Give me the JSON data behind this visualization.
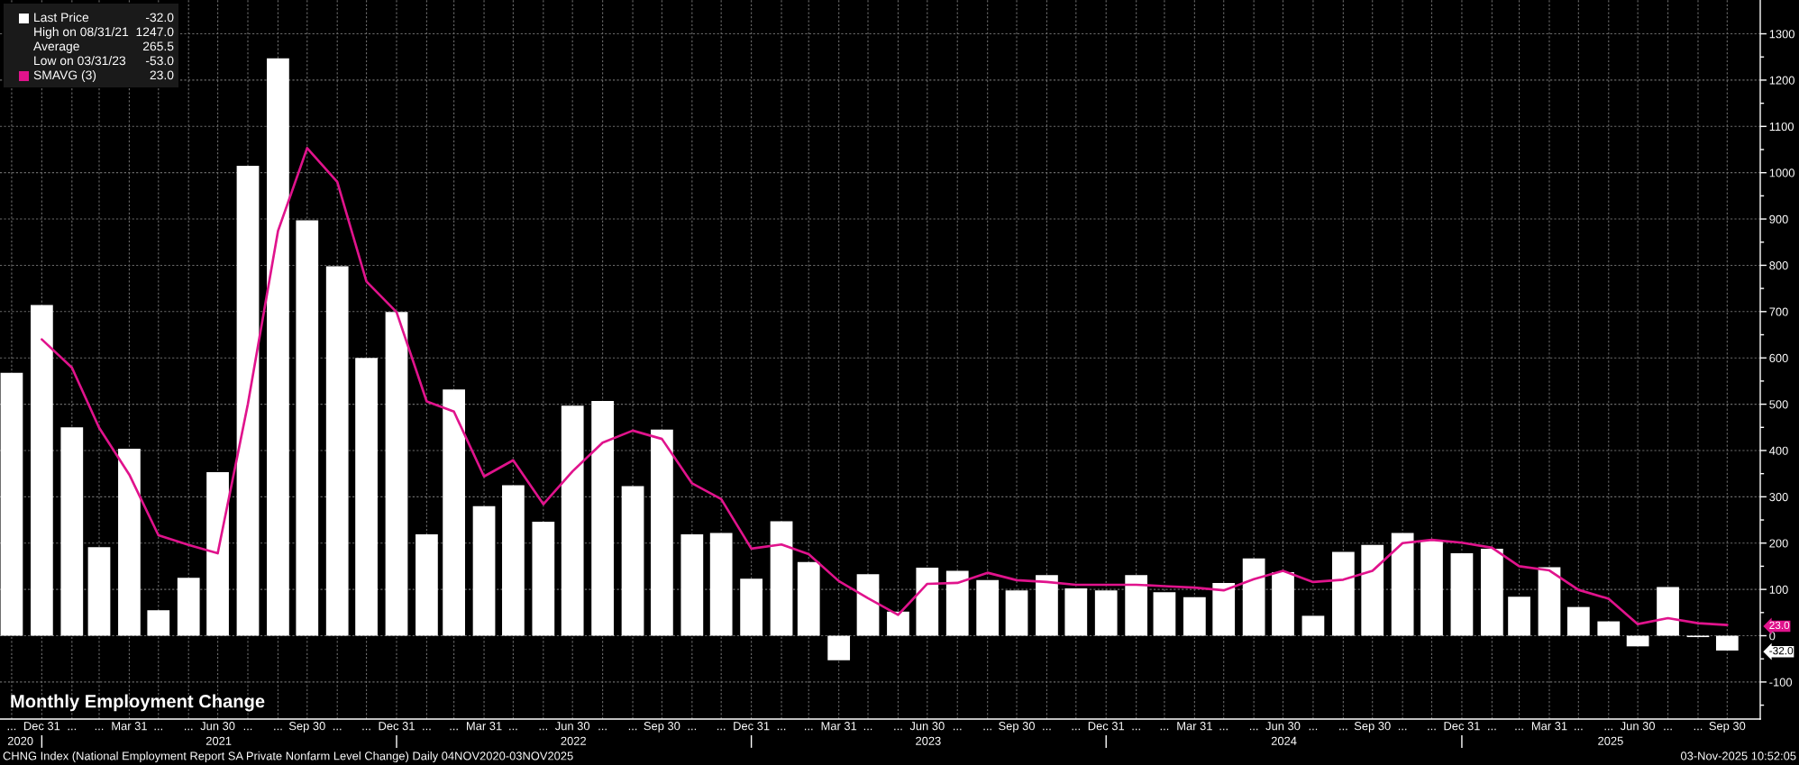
{
  "chart_data": {
    "type": "bar",
    "title": "Monthly Employment Change",
    "subtitle": "CHNG Index (National Employment Report SA Private Nonfarm Level Change) Daily 04NOV2020-03NOV2025",
    "x": [
      "2020-11-30",
      "2020-12-31",
      "2021-01-31",
      "2021-02-28",
      "2021-03-31",
      "2021-04-30",
      "2021-05-31",
      "2021-06-30",
      "2021-07-31",
      "2021-08-31",
      "2021-09-30",
      "2021-10-31",
      "2021-11-30",
      "2021-12-31",
      "2022-01-31",
      "2022-02-28",
      "2022-03-31",
      "2022-04-30",
      "2022-05-31",
      "2022-06-30",
      "2022-07-31",
      "2022-08-31",
      "2022-09-30",
      "2022-10-31",
      "2022-11-30",
      "2022-12-31",
      "2023-01-31",
      "2023-02-28",
      "2023-03-31",
      "2023-04-30",
      "2023-05-31",
      "2023-06-30",
      "2023-07-31",
      "2023-08-31",
      "2023-09-30",
      "2023-10-31",
      "2023-11-30",
      "2023-12-31",
      "2024-01-31",
      "2024-02-29",
      "2024-03-31",
      "2024-04-30",
      "2024-05-31",
      "2024-06-30",
      "2024-07-31",
      "2024-08-31",
      "2024-09-30",
      "2024-10-31",
      "2024-11-30",
      "2024-12-31",
      "2025-01-31",
      "2025-02-28",
      "2025-03-31",
      "2025-04-30",
      "2025-05-31",
      "2025-06-30",
      "2025-07-31",
      "2025-08-31",
      "2025-09-30"
    ],
    "series": [
      {
        "name": "Last Price",
        "color": "#ffffff",
        "values": [
          568,
          714,
          450,
          191,
          404,
          55,
          125,
          353,
          1015,
          1247,
          897,
          798,
          600,
          699,
          219,
          532,
          280,
          325,
          246,
          497,
          507,
          323,
          445,
          219,
          222,
          123,
          247,
          159,
          -53,
          133,
          52,
          147,
          140,
          120,
          98,
          131,
          102,
          98,
          131,
          94,
          83,
          114,
          167,
          137,
          43,
          181,
          196,
          222,
          206,
          178,
          188,
          84,
          148,
          62,
          31,
          -23,
          105,
          -3,
          -32
        ]
      },
      {
        "name": "SMAVG (3)",
        "type": "line",
        "color": "#e0138c",
        "values": [
          null,
          640,
          579,
          449,
          348,
          217,
          196,
          178,
          500,
          874,
          1053,
          980,
          765,
          699,
          506,
          484,
          344,
          379,
          284,
          355,
          417,
          443,
          425,
          329,
          295,
          188,
          197,
          176,
          118,
          81,
          45,
          112,
          114,
          136,
          120,
          116,
          110,
          110,
          110,
          107,
          104,
          98,
          122,
          140,
          116,
          121,
          140,
          200,
          207,
          201,
          190,
          150,
          141,
          99,
          80,
          25,
          38,
          27,
          23
        ]
      }
    ],
    "xlim": [
      "2020-11-18",
      "2025-11-03"
    ],
    "xticks": [
      {
        "value": "2020-11-30",
        "label": "..."
      },
      {
        "value": "2020-12-31",
        "label": "Dec 31"
      },
      {
        "value": "2021-01-31",
        "label": "..."
      },
      {
        "value": "2021-02-28",
        "label": "..."
      },
      {
        "value": "2021-03-31",
        "label": "Mar 31"
      },
      {
        "value": "2021-04-30",
        "label": "..."
      },
      {
        "value": "2021-05-31",
        "label": "..."
      },
      {
        "value": "2021-06-30",
        "label": "Jun 30"
      },
      {
        "value": "2021-07-31",
        "label": "..."
      },
      {
        "value": "2021-08-31",
        "label": "..."
      },
      {
        "value": "2021-09-30",
        "label": "Sep 30"
      },
      {
        "value": "2021-10-31",
        "label": "..."
      },
      {
        "value": "2021-11-30",
        "label": "..."
      },
      {
        "value": "2021-12-31",
        "label": "Dec 31"
      },
      {
        "value": "2022-01-31",
        "label": "..."
      },
      {
        "value": "2022-02-28",
        "label": "..."
      },
      {
        "value": "2022-03-31",
        "label": "Mar 31"
      },
      {
        "value": "2022-04-30",
        "label": "..."
      },
      {
        "value": "2022-05-31",
        "label": "..."
      },
      {
        "value": "2022-06-30",
        "label": "Jun 30"
      },
      {
        "value": "2022-07-31",
        "label": "..."
      },
      {
        "value": "2022-08-31",
        "label": "..."
      },
      {
        "value": "2022-09-30",
        "label": "Sep 30"
      },
      {
        "value": "2022-10-31",
        "label": "..."
      },
      {
        "value": "2022-11-30",
        "label": "..."
      },
      {
        "value": "2022-12-31",
        "label": "Dec 31"
      },
      {
        "value": "2023-01-31",
        "label": "..."
      },
      {
        "value": "2023-02-28",
        "label": "..."
      },
      {
        "value": "2023-03-31",
        "label": "Mar 31"
      },
      {
        "value": "2023-04-30",
        "label": "..."
      },
      {
        "value": "2023-05-31",
        "label": "..."
      },
      {
        "value": "2023-06-30",
        "label": "Jun 30"
      },
      {
        "value": "2023-07-31",
        "label": "..."
      },
      {
        "value": "2023-08-31",
        "label": "..."
      },
      {
        "value": "2023-09-30",
        "label": "Sep 30"
      },
      {
        "value": "2023-10-31",
        "label": "..."
      },
      {
        "value": "2023-11-30",
        "label": "..."
      },
      {
        "value": "2023-12-31",
        "label": "Dec 31"
      },
      {
        "value": "2024-01-31",
        "label": "..."
      },
      {
        "value": "2024-02-29",
        "label": "..."
      },
      {
        "value": "2024-03-31",
        "label": "Mar 31"
      },
      {
        "value": "2024-04-30",
        "label": "..."
      },
      {
        "value": "2024-05-31",
        "label": "..."
      },
      {
        "value": "2024-06-30",
        "label": "Jun 30"
      },
      {
        "value": "2024-07-31",
        "label": "..."
      },
      {
        "value": "2024-08-31",
        "label": "..."
      },
      {
        "value": "2024-09-30",
        "label": "Sep 30"
      },
      {
        "value": "2024-10-31",
        "label": "..."
      },
      {
        "value": "2024-11-30",
        "label": "..."
      },
      {
        "value": "2024-12-31",
        "label": "Dec 31"
      },
      {
        "value": "2025-01-31",
        "label": "..."
      },
      {
        "value": "2025-02-28",
        "label": "..."
      },
      {
        "value": "2025-03-31",
        "label": "Mar 31"
      },
      {
        "value": "2025-04-30",
        "label": "..."
      },
      {
        "value": "2025-05-31",
        "label": "..."
      },
      {
        "value": "2025-06-30",
        "label": "Jun 30"
      },
      {
        "value": "2025-07-31",
        "label": "..."
      },
      {
        "value": "2025-08-31",
        "label": "..."
      },
      {
        "value": "2025-09-30",
        "label": "Sep 30"
      }
    ],
    "x2lim": [
      "2020-11-18",
      "2025-11-03"
    ],
    "x2ticks": [
      {
        "value": "2020-12-09",
        "label": "2020"
      },
      {
        "value": "2020-12-31",
        "label": null
      },
      {
        "value": "2021-07-01",
        "label": "2021"
      },
      {
        "value": "2021-12-31",
        "label": null
      },
      {
        "value": "2022-07-01",
        "label": "2022"
      },
      {
        "value": "2022-12-31",
        "label": null
      },
      {
        "value": "2023-07-01",
        "label": "2023"
      },
      {
        "value": "2023-12-31",
        "label": null
      },
      {
        "value": "2024-07-01",
        "label": "2024"
      },
      {
        "value": "2024-12-31",
        "label": null
      },
      {
        "value": "2025-06-02",
        "label": "2025"
      }
    ],
    "ylim": [
      -180,
      1373
    ],
    "yticks": [
      {
        "value": -150,
        "label": null
      },
      -100,
      {
        "value": -50,
        "label": null
      },
      0,
      {
        "value": 50,
        "label": null
      },
      100,
      {
        "value": 150,
        "label": null
      },
      200,
      {
        "value": 250,
        "label": null
      },
      300,
      {
        "value": 350,
        "label": null
      },
      400,
      {
        "value": 450,
        "label": null
      },
      500,
      {
        "value": 550,
        "label": null
      },
      600,
      {
        "value": 650,
        "label": null
      },
      700,
      {
        "value": 750,
        "label": null
      },
      800,
      {
        "value": 850,
        "label": null
      },
      900,
      {
        "value": 950,
        "label": null
      },
      1000,
      {
        "value": 1050,
        "label": null
      },
      1100,
      {
        "value": 1150,
        "label": null
      },
      1200,
      {
        "value": 1250,
        "label": null
      },
      1300,
      {
        "value": 23,
        "label": "23.0"
      },
      {
        "value": -32,
        "label": "-32.0"
      }
    ],
    "grid": true,
    "legend": "top left",
    "annotations": [
      "-32.0",
      "High on 08/31/21",
      "1247.0",
      "Average",
      "265.5",
      "Low on 03/31/23",
      "-53.0",
      "23.0",
      "03-Nov-2025 10:52:05"
    ]
  }
}
